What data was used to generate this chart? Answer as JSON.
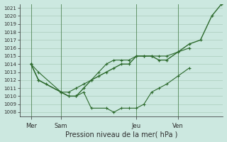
{
  "background_color": "#cce8e0",
  "plot_bg_color": "#cce8e0",
  "grid_color": "#aaccbb",
  "line_color": "#2d6a2d",
  "title": "Pression niveau de la mer( hPa )",
  "ylim": [
    1007.5,
    1021.5
  ],
  "yticks": [
    1008,
    1009,
    1010,
    1011,
    1012,
    1013,
    1014,
    1015,
    1016,
    1017,
    1018,
    1019,
    1020,
    1021
  ],
  "xlim": [
    0,
    270
  ],
  "xtick_labels": [
    "Mer",
    "Sam",
    "Jeu",
    "Ven"
  ],
  "xtick_positions": [
    15,
    55,
    155,
    210
  ],
  "vline_positions": [
    15,
    55,
    155,
    210
  ],
  "series1_x": [
    15,
    25,
    35,
    55,
    65,
    75,
    85,
    95,
    105,
    115,
    125,
    135,
    145,
    155,
    165,
    175,
    185,
    195,
    210,
    225,
    240,
    255,
    268
  ],
  "series1_y": [
    1014.0,
    1012.0,
    1011.5,
    1010.5,
    1010.0,
    1010.0,
    1011.0,
    1012.0,
    1012.5,
    1013.0,
    1013.5,
    1014.0,
    1014.0,
    1015.0,
    1015.0,
    1015.0,
    1014.5,
    1014.5,
    1015.5,
    1016.5,
    1017.0,
    1020.0,
    1021.5
  ],
  "series2_x": [
    15,
    25,
    55,
    65,
    75,
    85,
    95,
    115,
    125,
    135,
    145,
    155,
    165,
    175,
    185,
    195,
    210,
    225
  ],
  "series2_y": [
    1014.0,
    1013.0,
    1010.5,
    1010.0,
    1010.0,
    1010.5,
    1008.5,
    1008.5,
    1008.0,
    1008.5,
    1008.5,
    1008.5,
    1009.0,
    1010.5,
    1011.0,
    1011.5,
    1012.5,
    1013.5
  ],
  "series3_x": [
    15,
    25,
    55,
    65,
    75,
    85,
    95,
    105,
    115,
    125,
    135,
    145,
    155,
    165,
    175,
    185,
    195,
    210,
    225
  ],
  "series3_y": [
    1014.0,
    1012.0,
    1010.5,
    1010.5,
    1011.0,
    1011.5,
    1012.0,
    1013.0,
    1014.0,
    1014.5,
    1014.5,
    1014.5,
    1015.0,
    1015.0,
    1015.0,
    1015.0,
    1015.0,
    1015.5,
    1016.0
  ]
}
